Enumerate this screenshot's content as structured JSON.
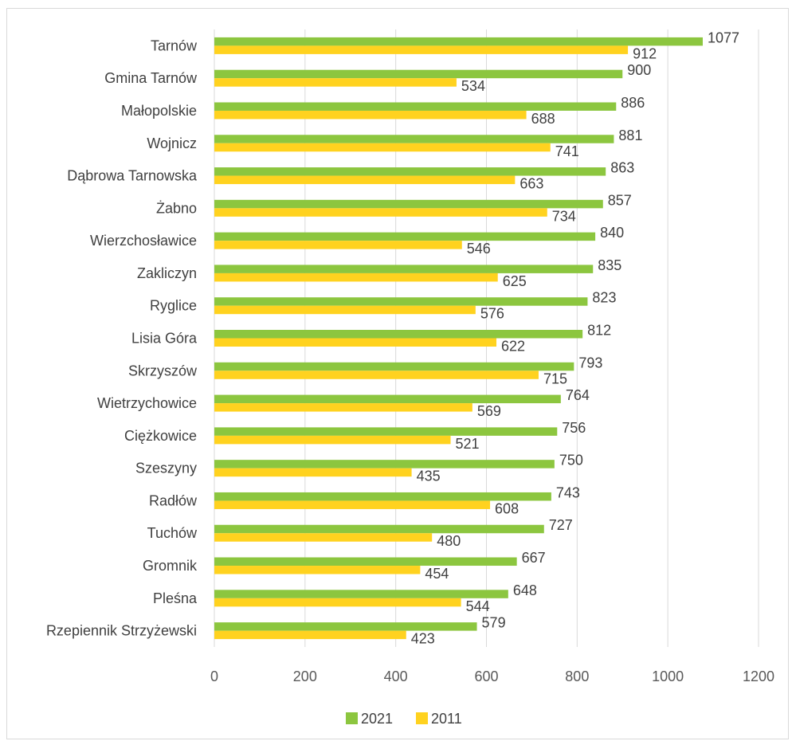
{
  "chart_data": {
    "type": "bar",
    "orientation": "horizontal",
    "title": "",
    "xlabel": "",
    "ylabel": "",
    "xlim": [
      0,
      1200
    ],
    "x_ticks": [
      0,
      200,
      400,
      600,
      800,
      1000,
      1200
    ],
    "grid": "vertical",
    "legend_position": "bottom",
    "categories": [
      "Tarnów",
      "Gmina Tarnów",
      "Małopolskie",
      "Wojnicz",
      "Dąbrowa Tarnowska",
      "Żabno",
      "Wierzchosławice",
      "Zakliczyn",
      "Ryglice",
      "Lisia Góra",
      "Skrzyszów",
      "Wietrzychowice",
      "Ciężkowice",
      "Szeszyny",
      "Radłów",
      "Tuchów",
      "Gromnik",
      "Pleśna",
      "Rzepiennik Strzyżewski"
    ],
    "series": [
      {
        "name": "2021",
        "color": "#8cc63f",
        "values": [
          1077,
          900,
          886,
          881,
          863,
          857,
          840,
          835,
          823,
          812,
          793,
          764,
          756,
          750,
          743,
          727,
          667,
          648,
          579
        ]
      },
      {
        "name": "2011",
        "color": "#ffd21f",
        "values": [
          912,
          534,
          688,
          741,
          663,
          734,
          546,
          625,
          576,
          622,
          715,
          569,
          521,
          435,
          608,
          480,
          454,
          544,
          423
        ]
      }
    ]
  }
}
